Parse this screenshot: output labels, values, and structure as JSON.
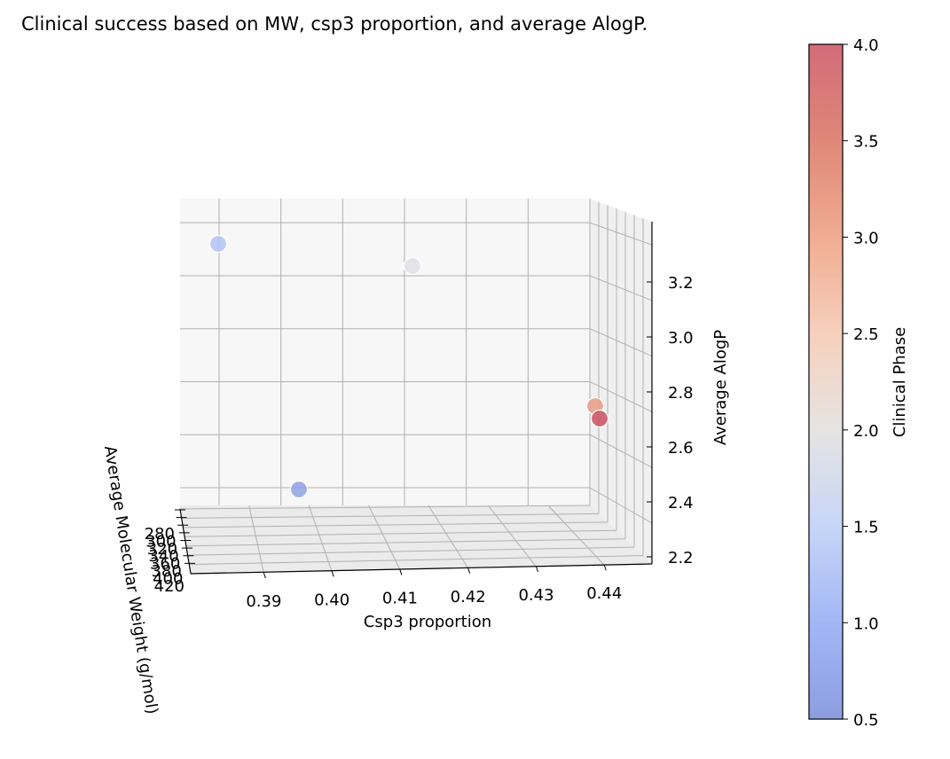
{
  "chart_data": {
    "type": "scatter",
    "title": "Clinical success based on MW, csp3 proportion, and average AlogP.",
    "xlabel": "Csp3 proportion",
    "ylabel": "Average Molecular Weight (g/mol)",
    "zlabel": "Average AlogP",
    "colorbar_label": "Clinical Phase",
    "projection": "3d",
    "colormap": "coolwarm",
    "xlim": [
      0.385,
      0.447
    ],
    "ylim": [
      270,
      430
    ],
    "zlim": [
      2.17,
      3.38
    ],
    "clim": [
      0.5,
      4.0
    ],
    "x_ticks": [
      "0.39",
      "0.40",
      "0.41",
      "0.42",
      "0.43",
      "0.44"
    ],
    "y_ticks": [
      "280",
      "300",
      "320",
      "340",
      "360",
      "380",
      "400",
      "420"
    ],
    "z_ticks": [
      "2.2",
      "2.4",
      "2.6",
      "2.8",
      "3.0",
      "3.2"
    ],
    "colorbar_ticks": [
      "0.5",
      "1.0",
      "1.5",
      "2.0",
      "2.5",
      "3.0",
      "3.5",
      "4.0"
    ],
    "grid": true,
    "points": [
      {
        "x": 0.386,
        "y": 300,
        "z": 3.25,
        "phase": 1.2
      },
      {
        "x": 0.421,
        "y": 300,
        "z": 3.17,
        "phase": 1.9
      },
      {
        "x": 0.401,
        "y": 300,
        "z": 2.35,
        "phase": 0.6
      },
      {
        "x": 0.444,
        "y": 420,
        "z": 2.78,
        "phase": 3.2
      },
      {
        "x": 0.444,
        "y": 420,
        "z": 2.73,
        "phase": 4.0
      }
    ]
  }
}
